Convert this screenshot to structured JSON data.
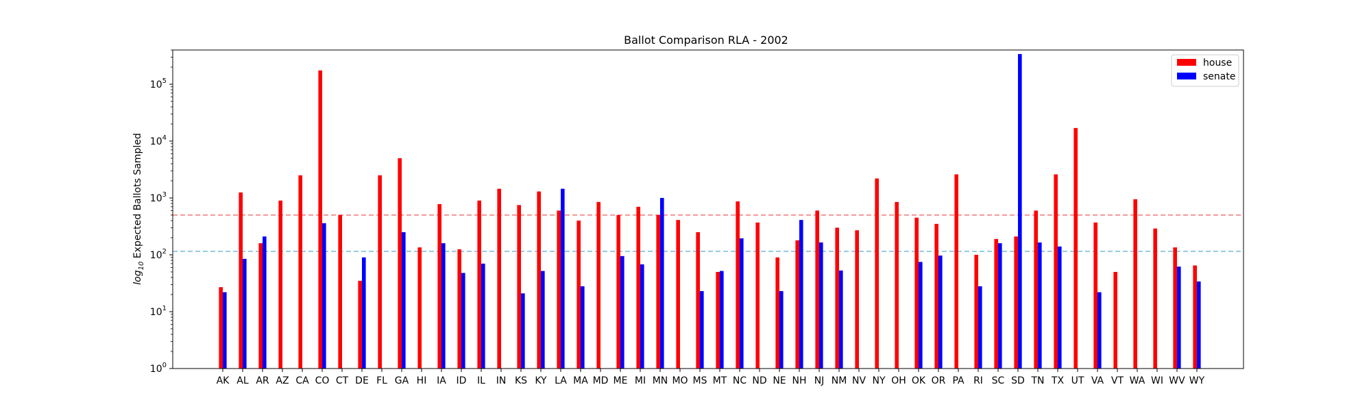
{
  "chart_data": {
    "type": "bar",
    "title": "Ballot Comparison RLA - 2002",
    "xlabel": "",
    "ylabel_prefix": "log",
    "ylabel_subscript": "10",
    "ylabel_suffix": " Expected Ballots Sampled",
    "yscale": "log",
    "ylim": [
      1,
      400000
    ],
    "ytick_values": [
      1,
      10,
      100,
      1000,
      10000,
      100000
    ],
    "ytick_labels": [
      {
        "base": "10",
        "exp": "0"
      },
      {
        "base": "10",
        "exp": "1"
      },
      {
        "base": "10",
        "exp": "2"
      },
      {
        "base": "10",
        "exp": "3"
      },
      {
        "base": "10",
        "exp": "4"
      },
      {
        "base": "10",
        "exp": "5"
      }
    ],
    "grid": false,
    "legend_position": "top-right",
    "categories": [
      "AK",
      "AL",
      "AR",
      "AZ",
      "CA",
      "CO",
      "CT",
      "DE",
      "FL",
      "GA",
      "HI",
      "IA",
      "ID",
      "IL",
      "IN",
      "KS",
      "KY",
      "LA",
      "MA",
      "MD",
      "ME",
      "MI",
      "MN",
      "MO",
      "MS",
      "MT",
      "NC",
      "ND",
      "NE",
      "NH",
      "NJ",
      "NM",
      "NV",
      "NY",
      "OH",
      "OK",
      "OR",
      "PA",
      "RI",
      "SC",
      "SD",
      "TN",
      "TX",
      "UT",
      "VA",
      "VT",
      "WA",
      "WI",
      "WV",
      "WY"
    ],
    "series": [
      {
        "name": "house",
        "color": "#ff0000",
        "values": [
          27,
          1250,
          160,
          900,
          2500,
          175000,
          500,
          35,
          2500,
          5000,
          135,
          780,
          125,
          900,
          1450,
          750,
          1300,
          600,
          400,
          850,
          500,
          700,
          500,
          410,
          250,
          50,
          870,
          370,
          90,
          180,
          600,
          300,
          270,
          2200,
          850,
          450,
          350,
          2600,
          100,
          190,
          210,
          600,
          2600,
          17000,
          370,
          50,
          950,
          290,
          135,
          65
        ]
      },
      {
        "name": "senate",
        "color": "#0000ff",
        "values": [
          22,
          85,
          210,
          null,
          null,
          360,
          null,
          90,
          null,
          250,
          null,
          160,
          48,
          70,
          null,
          21,
          52,
          1450,
          28,
          null,
          95,
          68,
          1000,
          null,
          23,
          52,
          195,
          null,
          23,
          410,
          165,
          53,
          null,
          null,
          null,
          75,
          97,
          null,
          28,
          160,
          340000,
          165,
          140,
          null,
          22,
          null,
          null,
          null,
          62,
          34
        ]
      }
    ],
    "reference_lines": [
      {
        "value": 500,
        "color": "#f08080",
        "style": "dashed"
      },
      {
        "value": 115,
        "color": "#7ec0d8",
        "style": "dashed"
      }
    ]
  }
}
